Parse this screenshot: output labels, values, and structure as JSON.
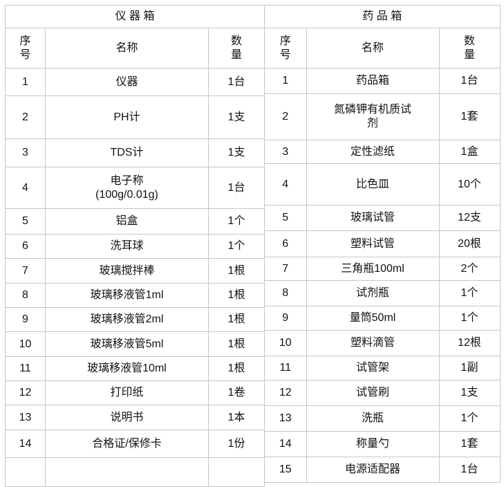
{
  "page": {
    "background_color": "#ffffff",
    "border_color": "#c6c6c6",
    "text_color": "#111111"
  },
  "tables": [
    {
      "id": "instrument-box",
      "title": "仪 器 箱",
      "columns": [
        "序\n号",
        "名称",
        "数\n量"
      ],
      "rows": [
        [
          "1",
          "仪器",
          "1台"
        ],
        [
          "2",
          "PH计",
          "1支"
        ],
        [
          "3",
          "TDS计",
          "1支"
        ],
        [
          "4",
          "电子称\n(100g/0.01g)",
          "1台"
        ],
        [
          "5",
          "铝盒",
          "1个"
        ],
        [
          "6",
          "洗耳球",
          "1个"
        ],
        [
          "7",
          "玻璃搅拌棒",
          "1根"
        ],
        [
          "8",
          "玻璃移液管1ml",
          "1根"
        ],
        [
          "9",
          "玻璃移液管2ml",
          "1根"
        ],
        [
          "10",
          "玻璃移液管5ml",
          "1根"
        ],
        [
          "11",
          "玻璃移液管10ml",
          "1根"
        ],
        [
          "12",
          "打印纸",
          "1卷"
        ],
        [
          "13",
          "说明书",
          "1本"
        ],
        [
          "14",
          "合格证/保修卡",
          "1份"
        ],
        [
          "",
          "",
          ""
        ]
      ]
    },
    {
      "id": "reagent-box",
      "title": "药 品 箱",
      "columns": [
        "序\n号",
        "名称",
        "数\n量"
      ],
      "rows": [
        [
          "1",
          "药品箱",
          "1台"
        ],
        [
          "2",
          "氮磷钾有机质试\n剂",
          "1套"
        ],
        [
          "3",
          "定性滤纸",
          "1盒"
        ],
        [
          "4",
          "比色皿",
          "10个"
        ],
        [
          "5",
          "玻璃试管",
          "12支"
        ],
        [
          "6",
          "塑料试管",
          "20根"
        ],
        [
          "7",
          "三角瓶100ml",
          "2个"
        ],
        [
          "8",
          "试剂瓶",
          "1个"
        ],
        [
          "9",
          "量筒50ml",
          "1个"
        ],
        [
          "10",
          "塑料滴管",
          "12根"
        ],
        [
          "11",
          "试管架",
          "1副"
        ],
        [
          "12",
          "试管刷",
          "1支"
        ],
        [
          "13",
          "洗瓶",
          "1个"
        ],
        [
          "14",
          "称量勺",
          "1套"
        ],
        [
          "15",
          "电源适配器",
          "1台"
        ]
      ]
    }
  ]
}
